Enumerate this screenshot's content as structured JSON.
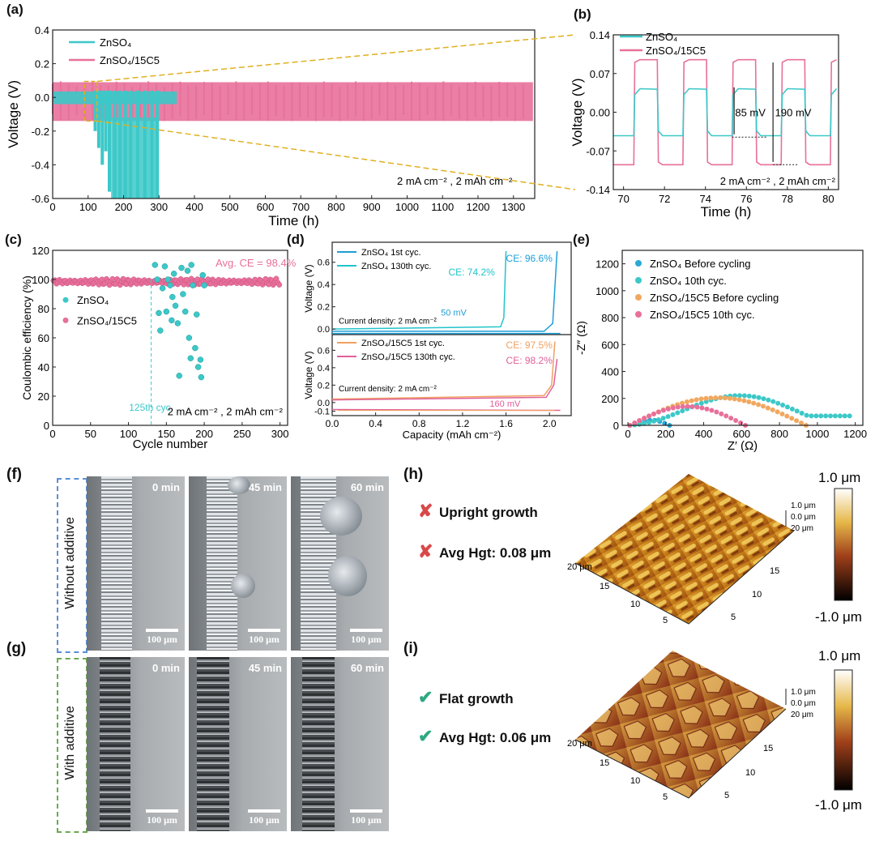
{
  "colors": {
    "znso4": "#3cc8c8",
    "znso4_15c5": "#e8709a",
    "d_top": "#1e9ed6",
    "d_top2": "#22c4cc",
    "d_bot1": "#f0a060",
    "d_bot2": "#e0609a",
    "e_before": "#2aa8d6",
    "e_10th": "#3cc8c8",
    "e_add_before": "#f0a860",
    "e_add_10th": "#e8709a",
    "orange_dash": "#e0b020",
    "check": "#2ea882",
    "cross": "#d94848",
    "box_blue": "#5b8fd6",
    "box_green": "#6aaa50"
  },
  "labels": {
    "a": "(a)",
    "b": "(b)",
    "c": "(c)",
    "d": "(d)",
    "e": "(e)",
    "f": "(f)",
    "g": "(g)",
    "h": "(h)",
    "i": "(i)"
  },
  "chart_data": [
    {
      "id": "a",
      "type": "line",
      "xlabel": "Time (h)",
      "ylabel": "Voltage (V)",
      "xlim": [
        0,
        1360
      ],
      "ylim": [
        -0.6,
        0.4
      ],
      "xticks": [
        "0",
        "100",
        "200",
        "300",
        "400",
        "500",
        "600",
        "700",
        "800",
        "900",
        "1000",
        "1100",
        "1200",
        "1300"
      ],
      "yticks": [
        "0.4",
        "0.2",
        "0.0",
        "-0.2",
        "-0.4",
        "-0.6"
      ],
      "series": [
        {
          "name": "ZnSO₄",
          "x_end": 300
        },
        {
          "name": "ZnSO₄/15C5",
          "x_end": 1355
        }
      ],
      "annotation": "2 mA cm⁻² , 2 mAh cm⁻²"
    },
    {
      "id": "b",
      "type": "line",
      "xlabel": "Time (h)",
      "ylabel": "Voltage (V)",
      "xlim": [
        69.5,
        80.5
      ],
      "ylim": [
        -0.14,
        0.14
      ],
      "xticks": [
        "70",
        "72",
        "74",
        "76",
        "78",
        "80"
      ],
      "yticks": [
        "0.14",
        "0.07",
        "0.00",
        "-0.07",
        "-0.14"
      ],
      "series": [
        {
          "name": "ZnSO₄",
          "amplitude": 0.0425
        },
        {
          "name": "ZnSO₄/15C5",
          "amplitude": 0.095
        }
      ],
      "annotations": [
        "85 mV",
        "190 mV",
        "2 mA cm⁻² , 2 mAh cm⁻²"
      ]
    },
    {
      "id": "c",
      "type": "scatter",
      "xlabel": "Cycle number",
      "ylabel": "Coulombic efficiency (%)",
      "xlim": [
        0,
        310
      ],
      "ylim": [
        0,
        120
      ],
      "xticks": [
        "0",
        "50",
        "100",
        "150",
        "200",
        "250",
        "300"
      ],
      "yticks": [
        "0",
        "20",
        "40",
        "60",
        "80",
        "100",
        "120"
      ],
      "series": [
        {
          "name": "ZnSO₄",
          "points": [
            [
              135,
              110
            ],
            [
              138,
              100
            ],
            [
              140,
              77
            ],
            [
              142,
              65
            ],
            [
              145,
              94
            ],
            [
              148,
              109
            ],
            [
              150,
              78
            ],
            [
              152,
              100
            ],
            [
              155,
              96
            ],
            [
              157,
              72
            ],
            [
              158,
              88
            ],
            [
              160,
              104
            ],
            [
              162,
              82
            ],
            [
              165,
              70
            ],
            [
              167,
              34
            ],
            [
              170,
              108
            ],
            [
              172,
              90
            ],
            [
              175,
              78
            ],
            [
              178,
              106
            ],
            [
              180,
              60
            ],
            [
              182,
              46
            ],
            [
              183,
              110
            ],
            [
              185,
              96
            ],
            [
              188,
              53
            ],
            [
              190,
              76
            ],
            [
              192,
              40
            ],
            [
              195,
              45
            ],
            [
              196,
              33
            ],
            [
              198,
              103
            ],
            [
              200,
              96
            ]
          ]
        },
        {
          "name": "ZnSO₄/15C5",
          "mean": 98.4,
          "n_cycles": 300
        }
      ],
      "annotations": [
        "Avg. CE = 98.4%",
        "125th cyc.",
        "2 mA cm⁻² , 2 mAh cm⁻²"
      ]
    },
    {
      "id": "d",
      "type": "line",
      "xlabel": "Capacity (mAh cm⁻²)",
      "ylabel": "Voltage (V)",
      "xticks": [
        "0.0",
        "0.4",
        "0.8",
        "1.2",
        "1.6",
        "2.0"
      ],
      "top": {
        "yticks": [
          "0.6",
          "0.4",
          "0.2",
          "0.0"
        ],
        "legend": [
          "ZnSO₄ 1st cyc.",
          "ZnSO₄ 130th cyc."
        ],
        "notes": [
          "CE: 96.6%",
          "CE: 74.2%",
          "Current density: 2 mA cm⁻²",
          "50 mV"
        ]
      },
      "bottom": {
        "yticks": [
          "0.6",
          "0.4",
          "0.2",
          "0.0",
          "-0.1"
        ],
        "legend": [
          "ZnSO₄/15C5 1st cyc.",
          "ZnSO₄/15C5 130th cyc."
        ],
        "notes": [
          "CE: 97.5%",
          "CE: 98.2%",
          "Current density: 2 mA cm⁻²",
          "160 mV"
        ]
      }
    },
    {
      "id": "e",
      "type": "scatter",
      "xlabel": "Z′ (Ω)",
      "ylabel": "-Z″ (Ω)",
      "xlim": [
        -30,
        1240
      ],
      "ylim": [
        0,
        1300
      ],
      "xticks": [
        "0",
        "200",
        "400",
        "600",
        "800",
        "1000",
        "1200"
      ],
      "yticks": [
        "0",
        "200",
        "400",
        "600",
        "800",
        "1000",
        "1200"
      ],
      "series": [
        {
          "name": "ZnSO₄ Before cycling",
          "x0": 10,
          "x1": 220,
          "peak": 40
        },
        {
          "name": "ZnSO₄ 10th cyc.",
          "x0": 10,
          "x1": 1170,
          "peak": 210,
          "tail": 70
        },
        {
          "name": "ZnSO₄/15C5 Before cycling",
          "x0": 10,
          "x1": 940,
          "peak": 205
        },
        {
          "name": "ZnSO₄/15C5 10th cyc.",
          "x0": 10,
          "x1": 620,
          "peak": 140
        }
      ]
    }
  ],
  "micro": {
    "times": [
      "0 min",
      "45 min",
      "60 min"
    ],
    "scale": "100 μm",
    "f_side": "Without additive",
    "g_side": "With additive"
  },
  "afm": {
    "h_line1": "Upright growth",
    "h_line2": "Avg Hgt: 0.08 μm",
    "i_line1": "Flat growth",
    "i_line2": "Avg Hgt: 0.06 μm",
    "z_ticks": [
      "1.0 μm",
      "0.0 μm",
      "20 μm"
    ],
    "xy_ticks": [
      "20 μm",
      "15",
      "10",
      "5"
    ],
    "side_ticks": [
      "15",
      "10",
      "5"
    ],
    "scale_top": "1.0 μm",
    "scale_bot": "-1.0 μm"
  }
}
